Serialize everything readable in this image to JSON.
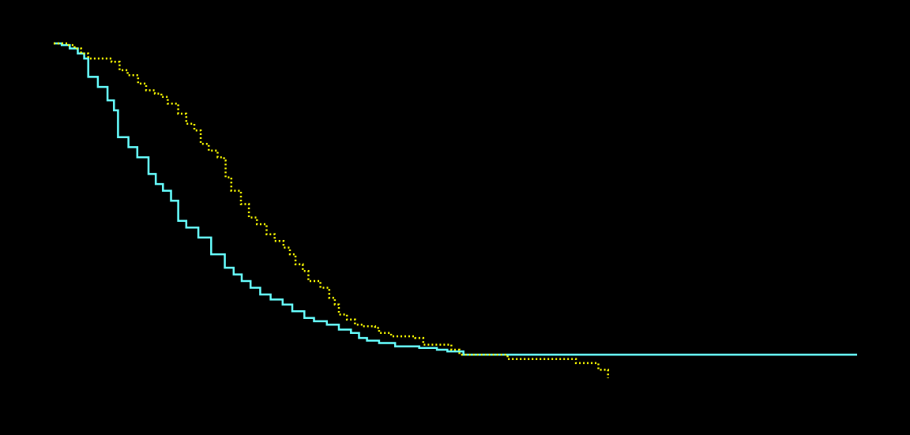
{
  "chart_data": {
    "type": "line",
    "title": "",
    "xlabel": "",
    "ylabel": "",
    "xlim": [
      0,
      100
    ],
    "ylim": [
      0,
      1
    ],
    "grid": false,
    "legend": "none",
    "background": "#000000",
    "series": [
      {
        "color": "#66ffff",
        "style": "solid",
        "step": true,
        "points": [
          [
            0,
            1.0
          ],
          [
            1.0,
            0.995
          ],
          [
            2.0,
            0.985
          ],
          [
            3.0,
            0.97
          ],
          [
            3.8,
            0.955
          ],
          [
            4.3,
            0.9
          ],
          [
            5.5,
            0.87
          ],
          [
            6.7,
            0.83
          ],
          [
            7.5,
            0.8
          ],
          [
            8.0,
            0.72
          ],
          [
            9.3,
            0.69
          ],
          [
            10.4,
            0.66
          ],
          [
            11.8,
            0.61
          ],
          [
            12.7,
            0.58
          ],
          [
            13.6,
            0.56
          ],
          [
            14.6,
            0.53
          ],
          [
            15.5,
            0.47
          ],
          [
            16.5,
            0.45
          ],
          [
            18.0,
            0.42
          ],
          [
            19.6,
            0.37
          ],
          [
            21.3,
            0.33
          ],
          [
            22.4,
            0.31
          ],
          [
            23.4,
            0.29
          ],
          [
            24.5,
            0.27
          ],
          [
            25.7,
            0.25
          ],
          [
            27.0,
            0.235
          ],
          [
            28.5,
            0.22
          ],
          [
            29.7,
            0.2
          ],
          [
            31.2,
            0.18
          ],
          [
            32.4,
            0.17
          ],
          [
            34.0,
            0.16
          ],
          [
            35.5,
            0.145
          ],
          [
            37.0,
            0.135
          ],
          [
            38.0,
            0.12
          ],
          [
            39.0,
            0.112
          ],
          [
            40.5,
            0.105
          ],
          [
            42.5,
            0.095
          ],
          [
            45.5,
            0.09
          ],
          [
            47.7,
            0.085
          ],
          [
            49.0,
            0.08
          ],
          [
            51.0,
            0.07
          ],
          [
            100,
            0.07
          ]
        ]
      },
      {
        "color": "#ffff00",
        "style": "dotted",
        "step": true,
        "points": [
          [
            0,
            1.0
          ],
          [
            1.7,
            0.995
          ],
          [
            2.6,
            0.985
          ],
          [
            3.4,
            0.97
          ],
          [
            4.3,
            0.955
          ],
          [
            7.2,
            0.945
          ],
          [
            8.2,
            0.92
          ],
          [
            9.2,
            0.905
          ],
          [
            10.5,
            0.88
          ],
          [
            11.5,
            0.86
          ],
          [
            12.6,
            0.85
          ],
          [
            13.4,
            0.84
          ],
          [
            14.2,
            0.82
          ],
          [
            15.5,
            0.79
          ],
          [
            16.5,
            0.76
          ],
          [
            17.5,
            0.74
          ],
          [
            18.3,
            0.7
          ],
          [
            19.3,
            0.68
          ],
          [
            20.4,
            0.66
          ],
          [
            21.2,
            0.65
          ],
          [
            21.4,
            0.6
          ],
          [
            22.1,
            0.56
          ],
          [
            23.3,
            0.52
          ],
          [
            24.3,
            0.48
          ],
          [
            25.3,
            0.46
          ],
          [
            26.5,
            0.43
          ],
          [
            27.5,
            0.41
          ],
          [
            28.6,
            0.39
          ],
          [
            29.4,
            0.37
          ],
          [
            30.1,
            0.34
          ],
          [
            31.0,
            0.32
          ],
          [
            31.7,
            0.29
          ],
          [
            33.2,
            0.27
          ],
          [
            34.3,
            0.24
          ],
          [
            35.0,
            0.22
          ],
          [
            35.5,
            0.19
          ],
          [
            36.5,
            0.175
          ],
          [
            37.5,
            0.16
          ],
          [
            38.5,
            0.155
          ],
          [
            40.0,
            0.15
          ],
          [
            40.5,
            0.135
          ],
          [
            42.0,
            0.125
          ],
          [
            45.0,
            0.12
          ],
          [
            46.0,
            0.1
          ],
          [
            49.5,
            0.085
          ],
          [
            50.5,
            0.07
          ],
          [
            56.5,
            0.057
          ],
          [
            65.0,
            0.045
          ],
          [
            67.8,
            0.025
          ],
          [
            69.0,
            0.0
          ]
        ]
      }
    ]
  }
}
